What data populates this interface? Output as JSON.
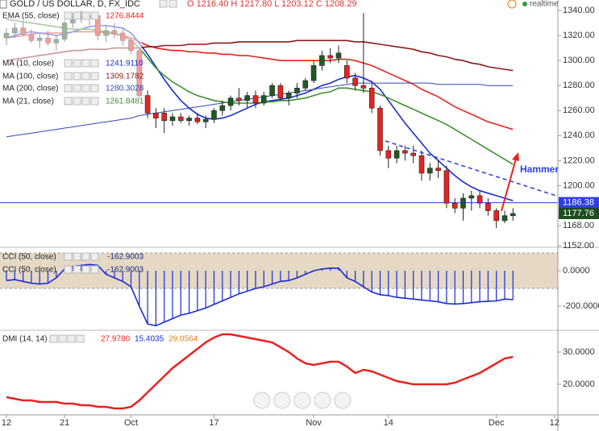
{
  "header": {
    "title": "GOLD / US DOLLAR, D, FX_IDC",
    "ohlc": "O 1216.40 H 1217.80 L 1203.12 C 1208.29",
    "status": "realtime"
  },
  "chart_data": [
    {
      "type": "candlestick",
      "categories": [
        "12",
        null,
        null,
        null,
        null,
        null,
        null,
        "21",
        null,
        null,
        null,
        null,
        null,
        null,
        null,
        "Oct",
        null,
        null,
        null,
        null,
        null,
        null,
        null,
        null,
        null,
        "17",
        null,
        null,
        null,
        null,
        null,
        null,
        null,
        null,
        null,
        null,
        null,
        "Nov",
        null,
        null,
        null,
        null,
        null,
        null,
        null,
        null,
        "14",
        null,
        null,
        null,
        null,
        null,
        null,
        null,
        null,
        null,
        null,
        null,
        null,
        "Dec",
        null,
        null,
        null,
        null,
        null,
        null,
        "12"
      ],
      "open": [
        1318,
        1322,
        1326,
        1321,
        1316,
        1318,
        1314,
        1317,
        1330,
        1335,
        1334,
        1336,
        1320,
        1324,
        1322,
        1316,
        1308,
        1272,
        1258,
        1258,
        1252,
        1255,
        1252,
        1254,
        1251,
        1253,
        1260,
        1264,
        1270,
        1268,
        1272,
        1266,
        1272,
        1280,
        1270,
        1274,
        1278,
        1284,
        1296,
        1304,
        1302,
        1296,
        1286,
        1280,
        1278,
        1262,
        1228,
        1222,
        1228,
        1226,
        1224,
        1210,
        1214,
        1212,
        1186,
        1182,
        1190,
        1192,
        1186,
        1180,
        1172,
        1176,
        null,
        null,
        null,
        null,
        null
      ],
      "high": [
        1326,
        1330,
        1332,
        1325,
        1322,
        1324,
        1320,
        1332,
        1338,
        1340,
        1338,
        1338,
        1328,
        1330,
        1326,
        1318,
        1310,
        1276,
        1262,
        1262,
        1258,
        1258,
        1256,
        1258,
        1256,
        1262,
        1268,
        1272,
        1278,
        1275,
        1276,
        1275,
        1282,
        1282,
        1276,
        1282,
        1286,
        1300,
        1308,
        1310,
        1312,
        1300,
        1290,
        1338,
        1282,
        1264,
        1232,
        1232,
        1232,
        1232,
        1228,
        1218,
        1220,
        1216,
        1190,
        1194,
        1196,
        1196,
        1190,
        1182,
        1180,
        1182,
        null,
        null,
        null,
        null,
        null
      ],
      "low": [
        1312,
        1318,
        1320,
        1314,
        1310,
        1312,
        1308,
        1315,
        1326,
        1330,
        1328,
        1316,
        1315,
        1318,
        1312,
        1305,
        1270,
        1254,
        1246,
        1242,
        1248,
        1250,
        1248,
        1249,
        1246,
        1250,
        1256,
        1260,
        1264,
        1262,
        1262,
        1264,
        1270,
        1268,
        1264,
        1270,
        1276,
        1282,
        1292,
        1298,
        1298,
        1282,
        1276,
        1274,
        1258,
        1224,
        1214,
        1218,
        1220,
        1218,
        1204,
        1204,
        1206,
        1182,
        1178,
        1172,
        1180,
        1182,
        1176,
        1166,
        1170,
        1172,
        null,
        null,
        null,
        null,
        null
      ],
      "close": [
        1322,
        1326,
        1321,
        1316,
        1318,
        1314,
        1317,
        1330,
        1335,
        1334,
        1336,
        1320,
        1324,
        1322,
        1316,
        1308,
        1272,
        1258,
        1254,
        1252,
        1255,
        1252,
        1254,
        1251,
        1253,
        1260,
        1264,
        1270,
        1268,
        1272,
        1266,
        1272,
        1280,
        1270,
        1274,
        1278,
        1284,
        1296,
        1304,
        1302,
        1306,
        1286,
        1280,
        1278,
        1262,
        1228,
        1222,
        1228,
        1226,
        1224,
        1210,
        1214,
        1212,
        1186,
        1182,
        1190,
        1192,
        1186,
        1180,
        1172,
        1176,
        1177.76,
        null,
        null,
        null,
        null,
        null
      ],
      "up_color": "#1f5a22",
      "down_color": "#e8231f",
      "series": [
        {
          "name": "EMA (55, close)",
          "color": "#e8231f",
          "legend_value": "1276.8444",
          "values": [
            1318,
            1319,
            1320,
            1321,
            1322,
            1322,
            1322,
            1322,
            1323,
            1323,
            1323,
            1323,
            1322,
            1321,
            1320,
            1318,
            1315,
            1312,
            1310,
            1309,
            1308,
            1308,
            1307,
            1307,
            1306,
            1306,
            1305,
            1305,
            1304,
            1304,
            1303,
            1302,
            1301,
            1300,
            1300,
            1300,
            1300,
            1300,
            1300,
            1300,
            1301,
            1301,
            1300,
            1298,
            1296,
            1293,
            1290,
            1287,
            1284,
            1281,
            1277,
            1274,
            1271,
            1267,
            1263,
            1260,
            1257,
            1254,
            1251,
            1249,
            1247,
            1245,
            null,
            null,
            null,
            null,
            null
          ]
        },
        {
          "name": "MA (10, close)",
          "color": "#1a2bd6",
          "legend_value": "1241.9110",
          "values": [
            1318,
            1320,
            1322,
            1323,
            1322,
            1321,
            1320,
            1321,
            1323,
            1325,
            1327,
            1328,
            1328,
            1327,
            1326,
            1322,
            1314,
            1305,
            1295,
            1285,
            1276,
            1268,
            1262,
            1257,
            1254,
            1253,
            1254,
            1256,
            1259,
            1262,
            1265,
            1267,
            1268,
            1269,
            1270,
            1272,
            1274,
            1277,
            1280,
            1282,
            1285,
            1287,
            1288,
            1286,
            1283,
            1277,
            1268,
            1259,
            1250,
            1242,
            1234,
            1226,
            1220,
            1214,
            1208,
            1203,
            1199,
            1196,
            1194,
            1192,
            1190,
            1188,
            null,
            null,
            null,
            null,
            null
          ]
        },
        {
          "name": "MA (100, close)",
          "color": "#8b1a1a",
          "legend_value": "1309.1782",
          "values": [
            1300,
            1301,
            1302,
            1303,
            1304,
            1305,
            1306,
            1307,
            1308,
            1308,
            1309,
            1309,
            1309,
            1310,
            1310,
            1310,
            1310,
            1311,
            1311,
            1312,
            1312,
            1312,
            1313,
            1313,
            1313,
            1314,
            1314,
            1314,
            1315,
            1315,
            1315,
            1315,
            1315,
            1315,
            1315,
            1316,
            1316,
            1316,
            1316,
            1316,
            1316,
            1316,
            1315,
            1315,
            1314,
            1313,
            1312,
            1311,
            1310,
            1309,
            1307,
            1306,
            1304,
            1303,
            1301,
            1300,
            1298,
            1297,
            1295,
            1294,
            1293,
            1292,
            null,
            null,
            null,
            null,
            null
          ]
        },
        {
          "name": "MA (200, close)",
          "color": "#3447b0",
          "legend_value": "1280.3028",
          "values": [
            1239,
            1240,
            1241,
            1242,
            1243,
            1244,
            1245,
            1246,
            1247,
            1248,
            1249,
            1250,
            1251,
            1252,
            1253,
            1254,
            1256,
            1257,
            1258,
            1259,
            1260,
            1261,
            1262,
            1263,
            1264,
            1265,
            1266,
            1267,
            1268,
            1269,
            1270,
            1271,
            1272,
            1273,
            1274,
            1275,
            1276,
            1277,
            1278,
            1279,
            1280,
            1281,
            1282,
            1282,
            1282,
            1282,
            1282,
            1282,
            1282,
            1282,
            1282,
            1282,
            1281,
            1281,
            1281,
            1281,
            1281,
            1281,
            1280,
            1280,
            1280,
            1280,
            null,
            null,
            null,
            null,
            null
          ]
        },
        {
          "name": "MA (21, close)",
          "color": "#3f8f2e",
          "legend_value": "1261.8481",
          "values": [
            1333,
            1332,
            1331,
            1330,
            1329,
            1328,
            1327,
            1326,
            1325,
            1325,
            1325,
            1324,
            1323,
            1322,
            1320,
            1316,
            1310,
            1302,
            1294,
            1288,
            1283,
            1279,
            1275,
            1272,
            1270,
            1268,
            1267,
            1266,
            1266,
            1266,
            1266,
            1267,
            1267,
            1268,
            1268,
            1269,
            1270,
            1272,
            1274,
            1275,
            1278,
            1278,
            1277,
            1276,
            1275,
            1273,
            1270,
            1267,
            1264,
            1261,
            1258,
            1255,
            1252,
            1249,
            1245,
            1241,
            1237,
            1233,
            1229,
            1225,
            1221,
            1217,
            null,
            null,
            null,
            null,
            null
          ]
        }
      ],
      "price_lines": [
        {
          "value": 1186.38,
          "color": "#2e3ee0"
        },
        {
          "value": 1177.76,
          "color": "#1f4d21"
        }
      ],
      "annotation": "Hammer",
      "ylim": [
        1150.7,
        1348.4
      ],
      "yticks": [
        {
          "value": 1340,
          "label": "1340.00"
        },
        {
          "value": 1320,
          "label": "1320.00"
        },
        {
          "value": 1300,
          "label": "1300.00"
        },
        {
          "value": 1280,
          "label": "1280.00"
        },
        {
          "value": 1260,
          "label": "1260.00"
        },
        {
          "value": 1240,
          "label": "1240.00"
        },
        {
          "value": 1220,
          "label": "1220.00"
        },
        {
          "value": 1200,
          "label": "1200.00"
        },
        {
          "value": 1168,
          "label": "1168.00"
        },
        {
          "value": 1152,
          "label": "1152.00"
        }
      ]
    },
    {
      "type": "cci",
      "series": [
        {
          "name": "CCI (50, close)",
          "color": "#1a2bd6",
          "legend_value": "-162.9003",
          "values": [
            -55,
            -50,
            -60,
            -70,
            -75,
            -70,
            -40,
            10,
            25,
            30,
            35,
            30,
            -20,
            -40,
            -60,
            -90,
            -200,
            -300,
            -310,
            -290,
            -270,
            -250,
            -240,
            -225,
            -210,
            -190,
            -170,
            -150,
            -130,
            -115,
            -100,
            -90,
            -75,
            -60,
            -55,
            -40,
            -20,
            0,
            10,
            15,
            15,
            -40,
            -60,
            -90,
            -120,
            -135,
            -140,
            -150,
            -155,
            -160,
            -165,
            -170,
            -175,
            -185,
            -188,
            -185,
            -180,
            -175,
            -172,
            -170,
            -160,
            -163,
            null,
            null,
            null,
            null,
            null
          ]
        }
      ],
      "band": [
        -100,
        100
      ],
      "band_color": "#dccbb0",
      "ylim": [
        -336,
        132
      ],
      "yticks": [
        {
          "value": 0,
          "label": "0.0000"
        },
        {
          "value": -200,
          "label": "-200.0000"
        }
      ]
    },
    {
      "type": "line",
      "series": [
        {
          "name": "DMI (14, 14)",
          "color": "#e8231f",
          "values": [
            16,
            15.5,
            15,
            15,
            14.5,
            14.5,
            14.5,
            14,
            14,
            13.5,
            13.5,
            13,
            13,
            12.5,
            12.5,
            13,
            15,
            17.5,
            20,
            22.5,
            25,
            27,
            29,
            31,
            33,
            34.5,
            35.5,
            35.5,
            35,
            34.5,
            34,
            33.5,
            33,
            31.5,
            30,
            28,
            26.5,
            26,
            26.5,
            27,
            27,
            25.5,
            23.5,
            24.5,
            24,
            23,
            22,
            21,
            20.5,
            20,
            20,
            20,
            20,
            20,
            20.5,
            21.5,
            22.5,
            23.5,
            25,
            26.5,
            28,
            28.5,
            null,
            null,
            null,
            null,
            null
          ]
        }
      ],
      "readouts": [
        {
          "text": "27.9780",
          "color": "#e8231f"
        },
        {
          "text": "15.4035",
          "color": "#1a2bd6"
        },
        {
          "text": "29.0564",
          "color": "#ef7d12"
        }
      ],
      "ylim": [
        10.5,
        36.75
      ],
      "yticks": [
        {
          "value": 30,
          "label": "30.0000"
        },
        {
          "value": 20,
          "label": "20.0000"
        }
      ]
    }
  ]
}
